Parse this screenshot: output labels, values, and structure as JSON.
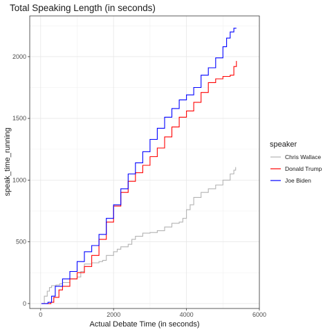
{
  "chart_data": {
    "type": "line",
    "title": "Total Speaking Length (in seconds)",
    "xlabel": "Actual Debate Time (in seconds)",
    "ylabel": "speak_time_running",
    "xlim": [
      -300,
      6000
    ],
    "ylim": [
      -40,
      2330
    ],
    "xticks": [
      0,
      2000,
      4000,
      6000
    ],
    "yticks": [
      0,
      500,
      1000,
      1500,
      2000
    ],
    "grid": true,
    "legend": {
      "title": "speaker",
      "position": "right"
    },
    "step": true,
    "series": [
      {
        "name": "Chris Wallace",
        "color": "#b3b3b3",
        "x": [
          20,
          100,
          180,
          240,
          300,
          420,
          520,
          600,
          800,
          1000,
          1100,
          1200,
          1400,
          1600,
          1700,
          1800,
          2000,
          2100,
          2200,
          2400,
          2500,
          2600,
          2800,
          3000,
          3200,
          3400,
          3600,
          3800,
          3900,
          4000,
          4100,
          4200,
          4400,
          4600,
          4800,
          5000,
          5200,
          5300,
          5350
        ],
        "y": [
          0,
          60,
          100,
          130,
          145,
          150,
          160,
          170,
          200,
          215,
          260,
          320,
          330,
          340,
          350,
          390,
          420,
          440,
          460,
          480,
          520,
          545,
          570,
          575,
          590,
          620,
          650,
          660,
          690,
          760,
          800,
          860,
          900,
          930,
          960,
          1000,
          1050,
          1080,
          1105
        ]
      },
      {
        "name": "Donald Trump",
        "color": "#ff0000",
        "x": [
          20,
          280,
          360,
          500,
          600,
          800,
          1000,
          1200,
          1400,
          1600,
          1800,
          2000,
          2200,
          2400,
          2600,
          2800,
          3000,
          3200,
          3400,
          3600,
          3800,
          4000,
          4200,
          4400,
          4600,
          4800,
          5000,
          5200,
          5300,
          5370
        ],
        "y": [
          0,
          10,
          50,
          110,
          140,
          200,
          250,
          300,
          390,
          520,
          660,
          790,
          900,
          990,
          1060,
          1120,
          1190,
          1260,
          1350,
          1430,
          1510,
          1560,
          1630,
          1710,
          1790,
          1820,
          1840,
          1850,
          1920,
          1965
        ]
      },
      {
        "name": "Joe Biden",
        "color": "#0000ff",
        "x": [
          20,
          200,
          300,
          400,
          600,
          800,
          1000,
          1200,
          1400,
          1600,
          1800,
          2000,
          2200,
          2400,
          2600,
          2800,
          3000,
          3200,
          3400,
          3600,
          3800,
          4000,
          4200,
          4400,
          4600,
          4800,
          5000,
          5100,
          5200,
          5300,
          5370
        ],
        "y": [
          0,
          10,
          60,
          140,
          200,
          260,
          340,
          420,
          470,
          560,
          690,
          800,
          930,
          1050,
          1140,
          1230,
          1330,
          1420,
          1510,
          1580,
          1650,
          1690,
          1750,
          1850,
          1910,
          1990,
          2080,
          2150,
          2200,
          2230,
          2230
        ]
      }
    ]
  }
}
